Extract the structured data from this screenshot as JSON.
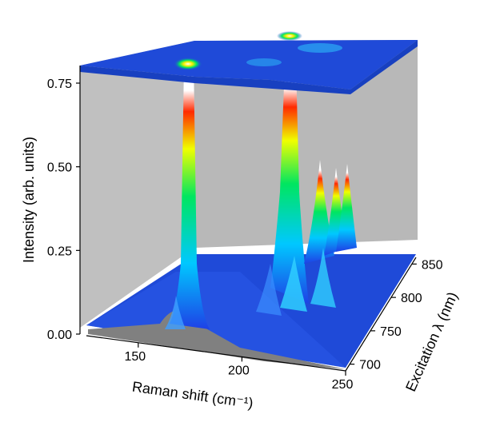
{
  "chart_data": {
    "type": "surface3d",
    "title": "",
    "xlabel": "Raman shift (cm⁻¹)",
    "ylabel": "Excitation λ (nm)",
    "zlabel": "Intensity (arb. units)",
    "x_ticks": [
      150,
      200,
      250
    ],
    "y_ticks": [
      700,
      750,
      800,
      850
    ],
    "z_ticks": [
      "0.00",
      "0.25",
      "0.50",
      "0.75"
    ],
    "xlim": [
      125,
      250
    ],
    "ylim": [
      690,
      860
    ],
    "zlim": [
      0,
      0.78
    ],
    "colormap": [
      "#1e40e6",
      "#00c8ff",
      "#00e660",
      "#f0ff00",
      "#ff2a00",
      "#ffffff"
    ],
    "wall_color": "#c0c0c0",
    "floor_color": "#7a7a7a",
    "peaks": [
      {
        "x": 176,
        "y": 720,
        "z": 0.78
      },
      {
        "x": 175,
        "y": 845,
        "z": 0.35
      },
      {
        "x": 226,
        "y": 832,
        "z": 0.78
      },
      {
        "x": 233,
        "y": 800,
        "z": 0.55
      },
      {
        "x": 240,
        "y": 790,
        "z": 0.52
      },
      {
        "x": 246,
        "y": 778,
        "z": 0.5
      },
      {
        "x": 229,
        "y": 760,
        "z": 0.3
      },
      {
        "x": 238,
        "y": 742,
        "z": 0.25
      }
    ]
  }
}
